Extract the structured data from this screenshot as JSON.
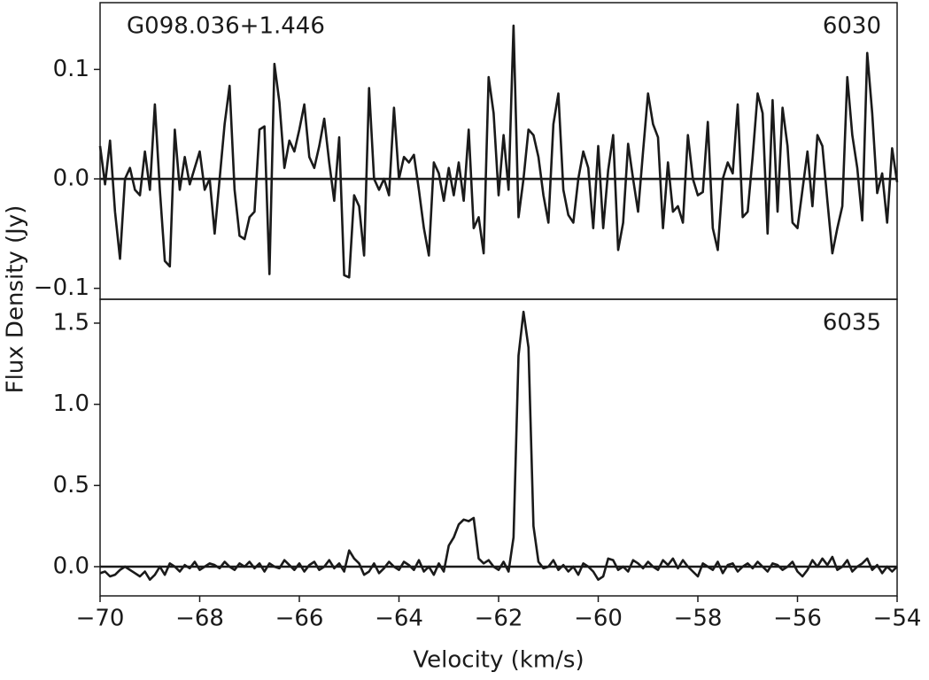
{
  "chart_data": [
    {
      "type": "line",
      "annotations": [
        "G098.036+1.446",
        "6030"
      ],
      "ylabel": "Flux Density (Jy)",
      "color": "#1a1a1a",
      "zero_line": true,
      "xlim": [
        -70,
        -54
      ],
      "ylim": [
        -0.11,
        0.161
      ],
      "yticks": [
        {
          "value": -0.1,
          "label": "−0.1"
        },
        {
          "value": 0,
          "label": "0.0"
        },
        0.1
      ],
      "x": [
        -70,
        -69.9,
        -69.8,
        -69.7,
        -69.6,
        -69.5,
        -69.4,
        -69.3,
        -69.2,
        -69.1,
        -69,
        -68.9,
        -68.8,
        -68.7,
        -68.6,
        -68.5,
        -68.4,
        -68.3,
        -68.2,
        -68.1,
        -68,
        -67.9,
        -67.8,
        -67.7,
        -67.6,
        -67.5,
        -67.4,
        -67.3,
        -67.2,
        -67.1,
        -67,
        -66.9,
        -66.8,
        -66.7,
        -66.6,
        -66.5,
        -66.4,
        -66.3,
        -66.2,
        -66.1,
        -66,
        -65.9,
        -65.8,
        -65.7,
        -65.6,
        -65.5,
        -65.4,
        -65.3,
        -65.2,
        -65.1,
        -65,
        -64.9,
        -64.8,
        -64.7,
        -64.6,
        -64.5,
        -64.4,
        -64.3,
        -64.2,
        -64.1,
        -64,
        -63.9,
        -63.8,
        -63.7,
        -63.6,
        -63.5,
        -63.4,
        -63.3,
        -63.2,
        -63.1,
        -63,
        -62.9,
        -62.8,
        -62.7,
        -62.6,
        -62.5,
        -62.4,
        -62.3,
        -62.2,
        -62.1,
        -62,
        -61.9,
        -61.8,
        -61.7,
        -61.6,
        -61.5,
        -61.4,
        -61.3,
        -61.2,
        -61.1,
        -61,
        -60.9,
        -60.8,
        -60.7,
        -60.6,
        -60.5,
        -60.4,
        -60.3,
        -60.2,
        -60.1,
        -60,
        -59.9,
        -59.8,
        -59.7,
        -59.6,
        -59.5,
        -59.4,
        -59.3,
        -59.2,
        -59.1,
        -59,
        -58.9,
        -58.8,
        -58.7,
        -58.6,
        -58.5,
        -58.4,
        -58.3,
        -58.2,
        -58.1,
        -58,
        -57.9,
        -57.8,
        -57.7,
        -57.6,
        -57.5,
        -57.4,
        -57.3,
        -57.2,
        -57.1,
        -57,
        -56.9,
        -56.8,
        -56.7,
        -56.6,
        -56.5,
        -56.4,
        -56.3,
        -56.2,
        -56.1,
        -56,
        -55.9,
        -55.8,
        -55.7,
        -55.6,
        -55.5,
        -55.4,
        -55.3,
        -55.2,
        -55.1,
        -55,
        -54.9,
        -54.8,
        -54.7,
        -54.6,
        -54.5,
        -54.4,
        -54.3,
        -54.2,
        -54.1,
        -54
      ],
      "values": [
        0.03,
        -0.005,
        0.035,
        -0.03,
        -0.073,
        0.0,
        0.01,
        -0.01,
        -0.015,
        0.025,
        -0.01,
        0.068,
        -0.01,
        -0.075,
        -0.08,
        0.045,
        -0.01,
        0.02,
        -0.005,
        0.01,
        0.025,
        -0.01,
        0.0,
        -0.05,
        0.0,
        0.05,
        0.085,
        -0.01,
        -0.052,
        -0.055,
        -0.035,
        -0.03,
        0.045,
        0.048,
        -0.087,
        0.105,
        0.07,
        0.01,
        0.035,
        0.025,
        0.045,
        0.068,
        0.02,
        0.01,
        0.03,
        0.055,
        0.015,
        -0.02,
        0.038,
        -0.088,
        -0.09,
        -0.015,
        -0.025,
        -0.07,
        0.083,
        0.0,
        -0.01,
        0.0,
        -0.015,
        0.065,
        0.0,
        0.02,
        0.015,
        0.022,
        -0.01,
        -0.045,
        -0.07,
        0.015,
        0.005,
        -0.02,
        0.01,
        -0.015,
        0.015,
        -0.02,
        0.045,
        -0.045,
        -0.035,
        -0.068,
        0.093,
        0.06,
        -0.015,
        0.04,
        -0.01,
        0.14,
        -0.035,
        0.0,
        0.045,
        0.04,
        0.02,
        -0.015,
        -0.04,
        0.05,
        0.078,
        -0.01,
        -0.033,
        -0.04,
        0.0,
        0.025,
        0.01,
        -0.045,
        0.03,
        -0.045,
        0.008,
        0.04,
        -0.065,
        -0.04,
        0.032,
        0.0,
        -0.03,
        0.025,
        0.078,
        0.05,
        0.038,
        -0.045,
        0.015,
        -0.03,
        -0.025,
        -0.04,
        0.04,
        0.0,
        -0.015,
        -0.012,
        0.052,
        -0.045,
        -0.065,
        0.0,
        0.015,
        0.005,
        0.068,
        -0.035,
        -0.03,
        0.02,
        0.078,
        0.06,
        -0.05,
        0.072,
        -0.03,
        0.065,
        0.03,
        -0.04,
        -0.045,
        -0.01,
        0.025,
        -0.025,
        0.04,
        0.03,
        -0.02,
        -0.068,
        -0.045,
        -0.025,
        0.093,
        0.04,
        0.01,
        -0.038,
        0.115,
        0.06,
        -0.013,
        0.005,
        -0.04,
        0.028,
        -0.003
      ]
    },
    {
      "type": "line",
      "annotations": [
        "6035"
      ],
      "xlabel": "Velocity (km/s)",
      "color": "#1a1a1a",
      "zero_line": true,
      "xlim": [
        -70,
        -54
      ],
      "ylim": [
        -0.18,
        1.647
      ],
      "xticks": [
        {
          "value": -70,
          "label": "−70"
        },
        {
          "value": -68,
          "label": "−68"
        },
        {
          "value": -66,
          "label": "−66"
        },
        {
          "value": -64,
          "label": "−64"
        },
        {
          "value": -62,
          "label": "−62"
        },
        {
          "value": -60,
          "label": "−60"
        },
        {
          "value": -58,
          "label": "−58"
        },
        {
          "value": -56,
          "label": "−56"
        },
        {
          "value": -54,
          "label": "−54"
        }
      ],
      "yticks": [
        {
          "value": 0,
          "label": "0.0"
        },
        0.5,
        {
          "value": 1,
          "label": "1.0"
        },
        1.5
      ],
      "x": [
        -70,
        -69.9,
        -69.8,
        -69.7,
        -69.6,
        -69.5,
        -69.4,
        -69.3,
        -69.2,
        -69.1,
        -69,
        -68.9,
        -68.8,
        -68.7,
        -68.6,
        -68.5,
        -68.4,
        -68.3,
        -68.2,
        -68.1,
        -68,
        -67.9,
        -67.8,
        -67.7,
        -67.6,
        -67.5,
        -67.4,
        -67.3,
        -67.2,
        -67.1,
        -67,
        -66.9,
        -66.8,
        -66.7,
        -66.6,
        -66.5,
        -66.4,
        -66.3,
        -66.2,
        -66.1,
        -66,
        -65.9,
        -65.8,
        -65.7,
        -65.6,
        -65.5,
        -65.4,
        -65.3,
        -65.2,
        -65.1,
        -65,
        -64.9,
        -64.8,
        -64.7,
        -64.6,
        -64.5,
        -64.4,
        -64.3,
        -64.2,
        -64.1,
        -64,
        -63.9,
        -63.8,
        -63.7,
        -63.6,
        -63.5,
        -63.4,
        -63.3,
        -63.2,
        -63.1,
        -63,
        -62.9,
        -62.8,
        -62.7,
        -62.6,
        -62.5,
        -62.4,
        -62.3,
        -62.2,
        -62.1,
        -62,
        -61.9,
        -61.8,
        -61.7,
        -61.6,
        -61.5,
        -61.4,
        -61.3,
        -61.2,
        -61.1,
        -61,
        -60.9,
        -60.8,
        -60.7,
        -60.6,
        -60.5,
        -60.4,
        -60.3,
        -60.2,
        -60.1,
        -60,
        -59.9,
        -59.8,
        -59.7,
        -59.6,
        -59.5,
        -59.4,
        -59.3,
        -59.2,
        -59.1,
        -59,
        -58.9,
        -58.8,
        -58.7,
        -58.6,
        -58.5,
        -58.4,
        -58.3,
        -58.2,
        -58.1,
        -58,
        -57.9,
        -57.8,
        -57.7,
        -57.6,
        -57.5,
        -57.4,
        -57.3,
        -57.2,
        -57.1,
        -57,
        -56.9,
        -56.8,
        -56.7,
        -56.6,
        -56.5,
        -56.4,
        -56.3,
        -56.2,
        -56.1,
        -56,
        -55.9,
        -55.8,
        -55.7,
        -55.6,
        -55.5,
        -55.4,
        -55.3,
        -55.2,
        -55.1,
        -55,
        -54.9,
        -54.8,
        -54.7,
        -54.6,
        -54.5,
        -54.4,
        -54.3,
        -54.2,
        -54.1,
        -54
      ],
      "values": [
        -0.04,
        -0.03,
        -0.06,
        -0.05,
        -0.02,
        0.0,
        -0.02,
        -0.04,
        -0.06,
        -0.03,
        -0.08,
        -0.05,
        0.0,
        -0.05,
        0.02,
        0.0,
        -0.03,
        0.01,
        -0.01,
        0.03,
        -0.02,
        0.0,
        0.02,
        0.01,
        -0.01,
        0.03,
        0.0,
        -0.02,
        0.02,
        0.0,
        0.03,
        -0.01,
        0.02,
        -0.03,
        0.02,
        0.0,
        -0.01,
        0.04,
        0.01,
        -0.02,
        0.02,
        -0.03,
        0.01,
        0.03,
        -0.02,
        0.0,
        0.04,
        -0.01,
        0.02,
        -0.03,
        0.1,
        0.05,
        0.02,
        -0.05,
        -0.03,
        0.02,
        -0.04,
        -0.01,
        0.03,
        0.0,
        -0.02,
        0.03,
        0.01,
        -0.02,
        0.04,
        -0.03,
        0.0,
        -0.05,
        0.02,
        -0.03,
        0.13,
        0.18,
        0.26,
        0.29,
        0.28,
        0.3,
        0.05,
        0.02,
        0.04,
        0.0,
        -0.02,
        0.03,
        -0.03,
        0.18,
        1.3,
        1.57,
        1.35,
        0.25,
        0.03,
        -0.01,
        0.0,
        0.04,
        -0.02,
        0.01,
        -0.03,
        0.0,
        -0.05,
        0.02,
        0.0,
        -0.03,
        -0.08,
        -0.06,
        0.05,
        0.04,
        -0.02,
        0.0,
        -0.03,
        0.04,
        0.02,
        -0.01,
        0.03,
        0.0,
        -0.02,
        0.04,
        0.01,
        0.05,
        -0.01,
        0.04,
        0.0,
        -0.03,
        -0.06,
        0.02,
        0.0,
        -0.02,
        0.03,
        -0.04,
        0.01,
        0.02,
        -0.03,
        0.0,
        0.02,
        -0.01,
        0.03,
        0.0,
        -0.03,
        0.02,
        0.01,
        -0.02,
        0.0,
        0.03,
        -0.03,
        -0.06,
        -0.02,
        0.04,
        0.0,
        0.05,
        0.01,
        0.06,
        -0.02,
        0.0,
        0.04,
        -0.03,
        0.0,
        0.02,
        0.05,
        -0.02,
        0.01,
        -0.04,
        0.0,
        -0.03,
        0.0
      ]
    }
  ]
}
